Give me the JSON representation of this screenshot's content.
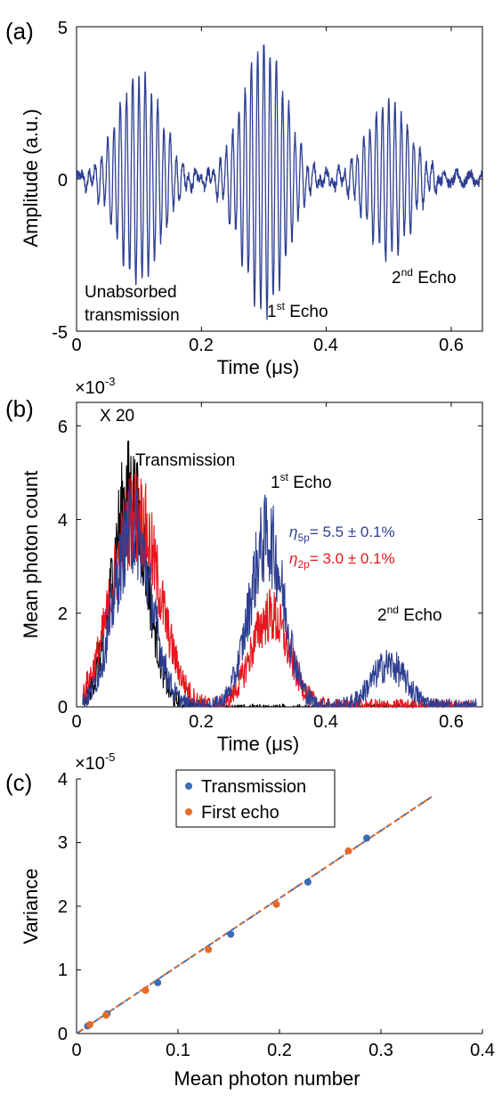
{
  "panels": {
    "a": {
      "label": "(a)"
    },
    "b": {
      "label": "(b)",
      "exponent": "×10",
      "exponent_power": "-3"
    },
    "c": {
      "label": "(c)",
      "exponent": "×10",
      "exponent_power": "-5"
    }
  },
  "colors": {
    "blue": "#2E3F92",
    "red": "#E8161E",
    "black": "#000000",
    "dot_blue": "#3A6DB5",
    "dot_orange": "#E66B2A"
  },
  "chart_data": [
    {
      "id": "a",
      "type": "line",
      "xlabel": "Time (μs)",
      "ylabel": "Amplitude (a.u.)",
      "xlim": [
        0,
        0.65
      ],
      "ylim": [
        -5,
        5
      ],
      "xticks": [
        "0",
        "0.2",
        "0.4",
        "0.6"
      ],
      "yticks": [
        "-5",
        "0",
        "5"
      ],
      "series": [
        {
          "color": "#2E3F92",
          "carrier_frequency_mhz": 100,
          "pulses": [
            {
              "center_us": 0.1,
              "amplitude": 3.4
            },
            {
              "center_us": 0.3,
              "amplitude": 4.4
            },
            {
              "center_us": 0.5,
              "amplitude": 2.5
            }
          ],
          "pulse_width_us": 0.035
        }
      ],
      "annotations": [
        {
          "text": "Unabsorbed",
          "x": 0.075,
          "y": -3.6
        },
        {
          "text": "transmission",
          "x": 0.075,
          "y": -4.4
        },
        {
          "text": "1",
          "sup": "st",
          "rest": " Echo",
          "x": 0.3,
          "y": -4.3
        },
        {
          "text": "2",
          "sup": "nd",
          "rest": " Echo",
          "x": 0.5,
          "y": -3.1
        }
      ]
    },
    {
      "id": "b",
      "type": "line",
      "xlabel": "Time (μs)",
      "ylabel": "Mean photon count",
      "xlim": [
        0,
        0.65
      ],
      "ylim": [
        0,
        6.5
      ],
      "xticks": [
        "0",
        "0.2",
        "0.4",
        "0.6"
      ],
      "yticks": [
        "0",
        "2",
        "4",
        "6"
      ],
      "series": [
        {
          "color": "#000000",
          "label": "X 20",
          "pulses": [
            {
              "center_us": 0.085,
              "amplitude": 4.6,
              "width_us": 0.028
            }
          ]
        },
        {
          "color": "#E8161E",
          "pulses": [
            {
              "center_us": 0.095,
              "amplitude": 4.1,
              "width_us": 0.038
            },
            {
              "center_us": 0.31,
              "amplitude": 1.95,
              "width_us": 0.03
            }
          ]
        },
        {
          "color": "#2E3F92",
          "pulses": [
            {
              "center_us": 0.09,
              "amplitude": 3.8,
              "width_us": 0.03
            },
            {
              "center_us": 0.305,
              "amplitude": 3.6,
              "width_us": 0.028
            },
            {
              "center_us": 0.5,
              "amplitude": 0.9,
              "width_us": 0.028
            }
          ]
        }
      ],
      "annotations": {
        "x20": "X 20",
        "transmission": "Transmission",
        "echo1_num": "1",
        "echo1_sup": "st",
        "echo1_rest": " Echo",
        "echo2_num": "2",
        "echo2_sup": "nd",
        "echo2_rest": " Echo",
        "eta5_sym": "η",
        "eta5_sub": "5p",
        "eta5_rest": "= 5.5 ± 0.1%",
        "eta2_sym": "η",
        "eta2_sub": "2p",
        "eta2_rest": "= 3.0 ± 0.1%"
      }
    },
    {
      "id": "c",
      "type": "scatter",
      "xlabel": "Mean photon number",
      "ylabel": "Variance",
      "xlim": [
        0,
        0.4
      ],
      "ylim": [
        0,
        4
      ],
      "xticks": [
        "0",
        "0.1",
        "0.2",
        "0.3",
        "0.4"
      ],
      "yticks": [
        "0",
        "1",
        "2",
        "3",
        "4"
      ],
      "legend": {
        "placement": "top",
        "items": [
          "Transmission",
          "First echo"
        ]
      },
      "series": [
        {
          "name": "Transmission",
          "color": "#3A6DB5",
          "x": [
            0.011,
            0.03,
            0.08,
            0.152,
            0.228,
            0.286
          ],
          "y": [
            0.12,
            0.31,
            0.8,
            1.56,
            2.38,
            3.07
          ]
        },
        {
          "name": "First echo",
          "color": "#E66B2A",
          "x": [
            0.013,
            0.029,
            0.068,
            0.13,
            0.197,
            0.268
          ],
          "y": [
            0.14,
            0.29,
            0.68,
            1.32,
            2.03,
            2.87
          ]
        }
      ],
      "fit_lines": [
        {
          "color": "#3A6DB5",
          "x": [
            0,
            0.35
          ],
          "y": [
            0,
            3.72
          ]
        },
        {
          "color": "#E66B2A",
          "x": [
            0,
            0.35
          ],
          "y": [
            0,
            3.72
          ]
        }
      ]
    }
  ]
}
